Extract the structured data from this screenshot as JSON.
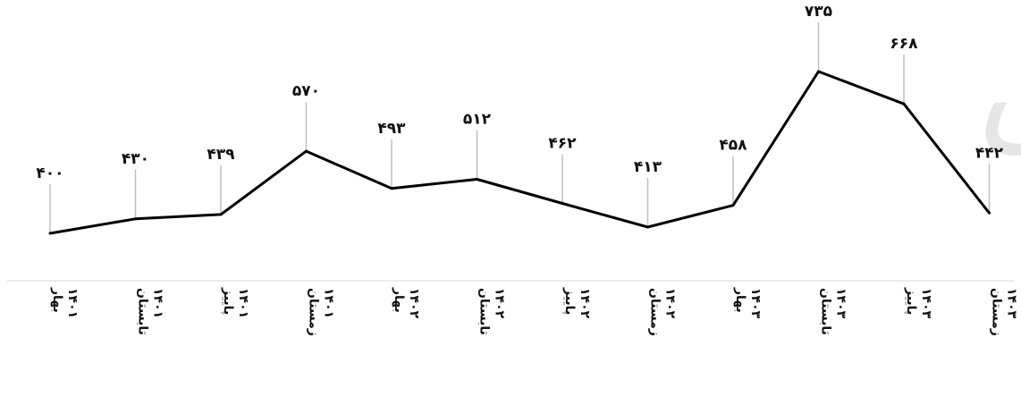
{
  "watermark": "مرکز آمار ایران",
  "chart_data": {
    "type": "line",
    "categories": [
      "بهار ۱۴۰۱",
      "تابستان ۱۴۰۱",
      "پاییز ۱۴۰۱",
      "زمستان ۱۴۰۱",
      "بهار ۱۴۰۲",
      "تابستان ۱۴۰۲",
      "پاییز ۱۴۰۲",
      "زمستان ۱۴۰۲",
      "بهار ۱۴۰۳",
      "تابستان ۱۴۰۳",
      "پاییز ۱۴۰۳",
      "زمستان ۱۴۰۳"
    ],
    "values": [
      400,
      430,
      439,
      570,
      493,
      512,
      462,
      413,
      458,
      735,
      668,
      442
    ],
    "value_labels": [
      "۴۰۰",
      "۴۳۰",
      "۴۳۹",
      "۵۷۰",
      "۴۹۳",
      "۵۱۲",
      "۴۶۲",
      "۴۱۳",
      "۴۵۸",
      "۷۳۵",
      "۶۶۸",
      "۴۴۲"
    ],
    "title": "",
    "xlabel": "",
    "ylabel": "",
    "grid": false,
    "legend": "none",
    "line_color": "#000000",
    "leader_color": "#bfbfbf"
  }
}
